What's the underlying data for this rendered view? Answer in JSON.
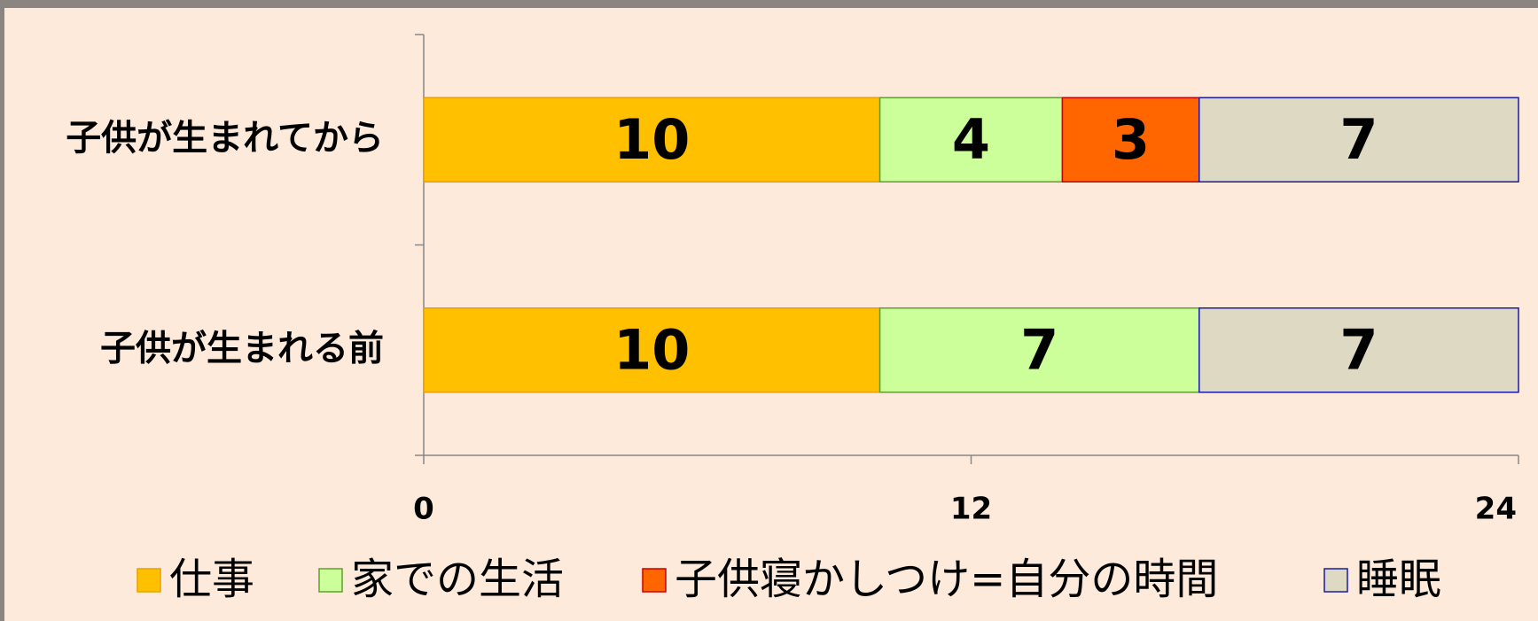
{
  "chart_data": {
    "type": "stacked_bar_horizontal",
    "categories": [
      "子供が生まれてから",
      "子供が生まれる前"
    ],
    "series": [
      {
        "name": "仕事",
        "color": "#ffc000",
        "values": [
          10,
          10
        ]
      },
      {
        "name": "家での生活",
        "color": "#ccff99",
        "values": [
          4,
          7
        ]
      },
      {
        "name": "子供寝かしつけ=自分の時間",
        "color": "#ff6600",
        "values": [
          3,
          null
        ]
      },
      {
        "name": "睡眠",
        "color": "#ddd9c3",
        "values": [
          7,
          7
        ]
      }
    ],
    "xlim": [
      0,
      24
    ],
    "xticks": [
      0,
      12,
      24
    ],
    "legend": "bottom"
  }
}
